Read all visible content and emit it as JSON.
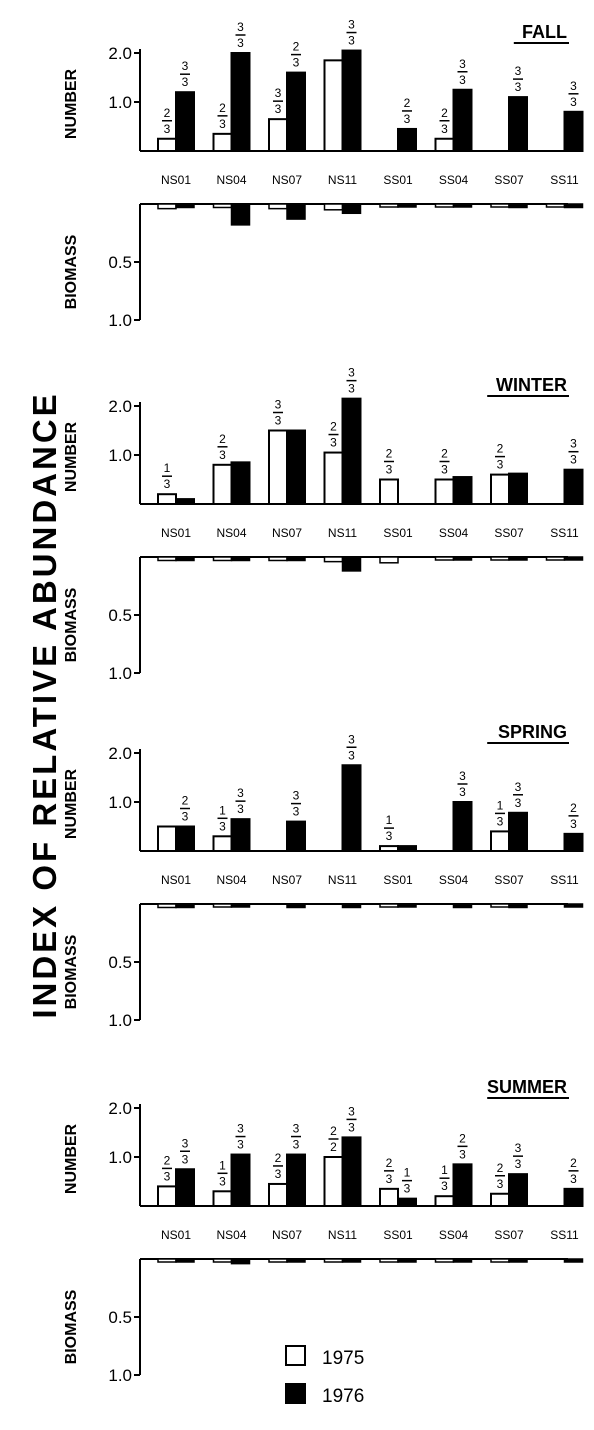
{
  "figure": {
    "side_title": "INDEX OF RELATIVE ABUNDANCE",
    "legend": [
      {
        "label": "1975",
        "fill": "#ffffff"
      },
      {
        "label": "1976",
        "fill": "#000000"
      }
    ]
  },
  "chart_data": [
    {
      "type": "bar",
      "title": "FALL",
      "categories": [
        "NS01",
        "NS04",
        "NS07",
        "NS11",
        "SS01",
        "SS04",
        "SS07",
        "SS11"
      ],
      "number": {
        "ylabel": "NUMBER",
        "ylim": [
          0,
          2.0
        ],
        "ticks": [
          "1.0",
          "2.0"
        ],
        "series": [
          {
            "name": "1975",
            "values": [
              0.25,
              0.35,
              0.65,
              1.85,
              0,
              0.25,
              0,
              0
            ],
            "fractions": [
              "2/3",
              "2/3",
              "3/3",
              "",
              "",
              "2/3",
              "",
              ""
            ]
          },
          {
            "name": "1976",
            "values": [
              1.2,
              2.0,
              1.6,
              2.05,
              0.45,
              1.25,
              1.1,
              0.8
            ],
            "fractions": [
              "3/3",
              "3/3",
              "2/3",
              "3/3",
              "2/3",
              "3/3",
              "3/3",
              "3/3"
            ]
          }
        ]
      },
      "biomass": {
        "ylabel": "BIOMASS",
        "ylim": [
          0,
          1.0
        ],
        "ticks": [
          "0.5",
          "1.0"
        ],
        "series": [
          {
            "name": "1975",
            "values": [
              0.04,
              0.03,
              0.04,
              0.05,
              0.02,
              0.02,
              0.02,
              0.02
            ]
          },
          {
            "name": "1976",
            "values": [
              0.03,
              0.18,
              0.13,
              0.08,
              0.02,
              0.02,
              0.03,
              0.03
            ]
          }
        ]
      }
    },
    {
      "type": "bar",
      "title": "WINTER",
      "categories": [
        "NS01",
        "NS04",
        "NS07",
        "NS11",
        "SS01",
        "SS04",
        "SS07",
        "SS11"
      ],
      "number": {
        "ylabel": "NUMBER",
        "ylim": [
          0,
          2.0
        ],
        "ticks": [
          "1.0",
          "2.0"
        ],
        "series": [
          {
            "name": "1975",
            "values": [
              0.2,
              0.8,
              1.5,
              1.05,
              0.5,
              0.5,
              0.6,
              0
            ],
            "fractions": [
              "1/3",
              "2/3",
              "3/3",
              "2/3",
              "2/3",
              "2/3",
              "2/3",
              ""
            ]
          },
          {
            "name": "1976",
            "values": [
              0.1,
              0.85,
              1.5,
              2.15,
              0,
              0.55,
              0.62,
              0.7
            ],
            "fractions": [
              "",
              "",
              "",
              "3/3",
              "",
              "",
              "",
              "3/3"
            ]
          }
        ]
      },
      "biomass": {
        "ylabel": "BIOMASS",
        "ylim": [
          0,
          1.0
        ],
        "ticks": [
          "0.5",
          "1.0"
        ],
        "series": [
          {
            "name": "1975",
            "values": [
              0.03,
              0.03,
              0.03,
              0.04,
              0.05,
              0.02,
              0.02,
              0.01
            ]
          },
          {
            "name": "1976",
            "values": [
              0.03,
              0.03,
              0.03,
              0.12,
              0,
              0.02,
              0.02,
              0.02
            ]
          }
        ]
      }
    },
    {
      "type": "bar",
      "title": "SPRING",
      "categories": [
        "NS01",
        "NS04",
        "NS07",
        "NS11",
        "SS01",
        "SS04",
        "SS07",
        "SS11"
      ],
      "number": {
        "ylabel": "NUMBER",
        "ylim": [
          0,
          2.0
        ],
        "ticks": [
          "1.0",
          "2.0"
        ],
        "series": [
          {
            "name": "1975",
            "values": [
              0.5,
              0.3,
              0,
              0,
              0.1,
              0,
              0.4,
              0
            ],
            "fractions": [
              "",
              "1/3",
              "",
              "",
              "1/3",
              "",
              "1/3",
              ""
            ]
          },
          {
            "name": "1976",
            "values": [
              0.5,
              0.65,
              0.6,
              1.75,
              0.1,
              1.0,
              0.78,
              0.35
            ],
            "fractions": [
              "2/3",
              "3/3",
              "3/3",
              "3/3",
              "",
              "3/3",
              "3/3",
              "2/3"
            ]
          }
        ]
      },
      "biomass": {
        "ylabel": "BIOMASS",
        "ylim": [
          0,
          1.0
        ],
        "ticks": [
          "0.5",
          "1.0"
        ],
        "series": [
          {
            "name": "1975",
            "values": [
              0.03,
              0.02,
              0,
              0,
              0.02,
              0,
              0.02,
              0
            ]
          },
          {
            "name": "1976",
            "values": [
              0.03,
              0.02,
              0.03,
              0.03,
              0.02,
              0.03,
              0.03,
              0.02
            ]
          }
        ]
      }
    },
    {
      "type": "bar",
      "title": "SUMMER",
      "categories": [
        "NS01",
        "NS04",
        "NS07",
        "NS11",
        "SS01",
        "SS04",
        "SS07",
        "SS11"
      ],
      "number": {
        "ylabel": "NUMBER",
        "ylim": [
          0,
          2.0
        ],
        "ticks": [
          "1.0",
          "2.0"
        ],
        "series": [
          {
            "name": "1975",
            "values": [
              0.4,
              0.3,
              0.45,
              1.0,
              0.35,
              0.2,
              0.25,
              0
            ],
            "fractions": [
              "2/3",
              "1/3",
              "2/3",
              "2/2",
              "2/3",
              "1/3",
              "2/3",
              ""
            ]
          },
          {
            "name": "1976",
            "values": [
              0.75,
              1.05,
              1.05,
              1.4,
              0.15,
              0.85,
              0.65,
              0.35
            ],
            "fractions": [
              "3/3",
              "3/3",
              "3/3",
              "3/3",
              "1/3",
              "2/3",
              "3/3",
              "2/3"
            ]
          }
        ]
      },
      "biomass": {
        "ylabel": "BIOMASS",
        "ylim": [
          0,
          1.0
        ],
        "ticks": [
          "0.5",
          "1.0"
        ],
        "series": [
          {
            "name": "1975",
            "values": [
              0.02,
              0.02,
              0.02,
              0.02,
              0.02,
              0.02,
              0.02,
              0
            ]
          },
          {
            "name": "1976",
            "values": [
              0.02,
              0.04,
              0.02,
              0.02,
              0.02,
              0.02,
              0.02,
              0.02
            ]
          }
        ]
      }
    }
  ]
}
